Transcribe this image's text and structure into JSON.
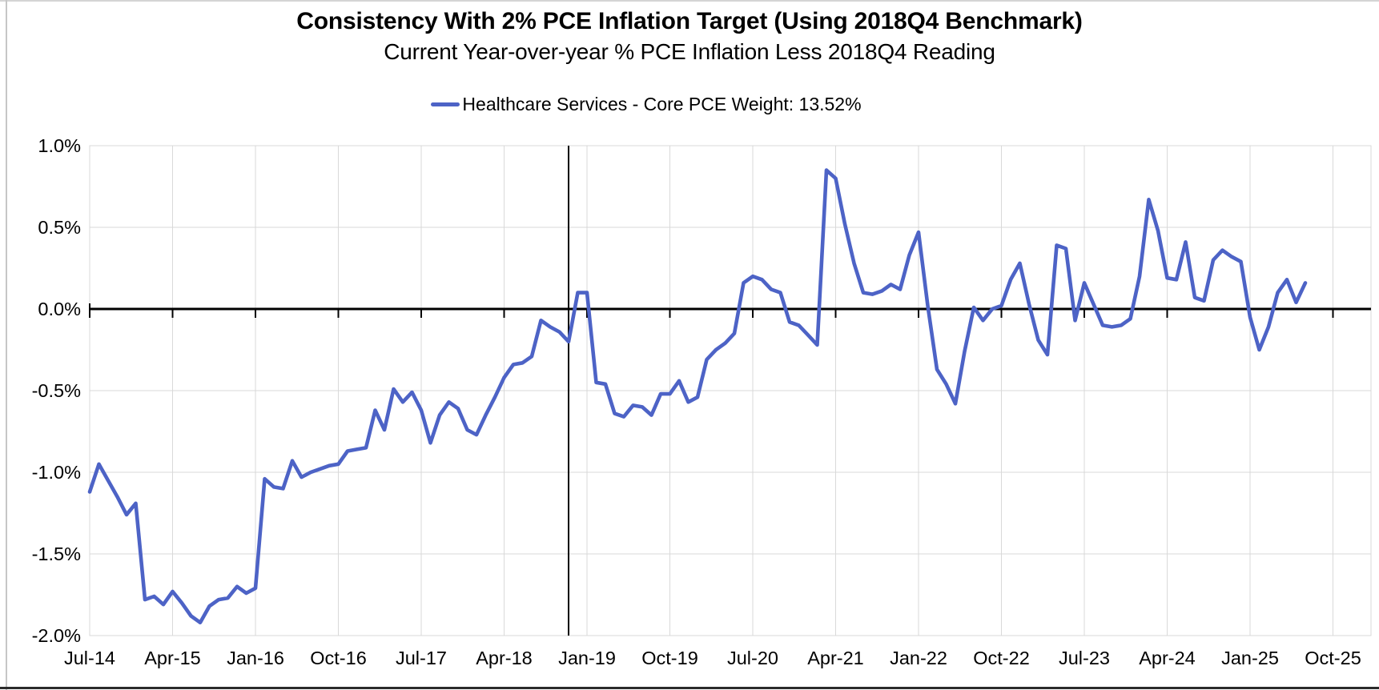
{
  "header": {
    "title": "Consistency With 2% PCE Inflation Target (Using 2018Q4 Benchmark)",
    "subtitle": "Current Year-over-year % PCE Inflation Less 2018Q4 Reading"
  },
  "legend": {
    "label": "Healthcare Services - Core PCE Weight: 13.52%"
  },
  "chart_data": {
    "type": "line",
    "title": "Consistency With 2% PCE Inflation Target (Using 2018Q4 Benchmark)",
    "subtitle": "Current Year-over-year % PCE Inflation Less 2018Q4 Reading",
    "legend_position": "top",
    "grid": true,
    "ylim": [
      -2.0,
      1.0
    ],
    "ytick_labels": [
      "1.0%",
      "0.5%",
      "0.0%",
      "-0.5%",
      "-1.0%",
      "-1.5%",
      "-2.0%"
    ],
    "ytick_values": [
      1.0,
      0.5,
      0.0,
      -0.5,
      -1.0,
      -1.5,
      -2.0
    ],
    "xtick_labels": [
      "Jul-14",
      "Apr-15",
      "Jan-16",
      "Oct-16",
      "Jul-17",
      "Apr-18",
      "Jan-19",
      "Oct-19",
      "Jul-20",
      "Apr-21",
      "Jan-22",
      "Oct-22",
      "Jul-23",
      "Apr-24",
      "Jan-25",
      "Oct-25"
    ],
    "xtick_step": 9,
    "benchmark_month": "Nov-18",
    "colors": {
      "line": "#4D63C6",
      "grid": "#D9D9D9",
      "axis": "#000000",
      "text": "#000000"
    },
    "x": [
      "Jul-14",
      "Aug-14",
      "Sep-14",
      "Oct-14",
      "Nov-14",
      "Dec-14",
      "Jan-15",
      "Feb-15",
      "Mar-15",
      "Apr-15",
      "May-15",
      "Jun-15",
      "Jul-15",
      "Aug-15",
      "Sep-15",
      "Oct-15",
      "Nov-15",
      "Dec-15",
      "Jan-16",
      "Feb-16",
      "Mar-16",
      "Apr-16",
      "May-16",
      "Jun-16",
      "Jul-16",
      "Aug-16",
      "Sep-16",
      "Oct-16",
      "Nov-16",
      "Dec-16",
      "Jan-17",
      "Feb-17",
      "Mar-17",
      "Apr-17",
      "May-17",
      "Jun-17",
      "Jul-17",
      "Aug-17",
      "Sep-17",
      "Oct-17",
      "Nov-17",
      "Dec-17",
      "Jan-18",
      "Feb-18",
      "Mar-18",
      "Apr-18",
      "May-18",
      "Jun-18",
      "Jul-18",
      "Aug-18",
      "Sep-18",
      "Oct-18",
      "Nov-18",
      "Dec-18",
      "Jan-19",
      "Feb-19",
      "Mar-19",
      "Apr-19",
      "May-19",
      "Jun-19",
      "Jul-19",
      "Aug-19",
      "Sep-19",
      "Oct-19",
      "Nov-19",
      "Dec-19",
      "Jan-20",
      "Feb-20",
      "Mar-20",
      "Apr-20",
      "May-20",
      "Jun-20",
      "Jul-20",
      "Aug-20",
      "Sep-20",
      "Oct-20",
      "Nov-20",
      "Dec-20",
      "Jan-21",
      "Feb-21",
      "Mar-21",
      "Apr-21",
      "May-21",
      "Jun-21",
      "Jul-21",
      "Aug-21",
      "Sep-21",
      "Oct-21",
      "Nov-21",
      "Dec-21",
      "Jan-22",
      "Feb-22",
      "Mar-22",
      "Apr-22",
      "May-22",
      "Jun-22",
      "Jul-22",
      "Aug-22",
      "Sep-22",
      "Oct-22",
      "Nov-22",
      "Dec-22",
      "Jan-23",
      "Feb-23",
      "Mar-23",
      "Apr-23",
      "May-23",
      "Jun-23",
      "Jul-23",
      "Aug-23",
      "Sep-23",
      "Oct-23",
      "Nov-23",
      "Dec-23",
      "Jan-24",
      "Feb-24",
      "Mar-24",
      "Apr-24",
      "May-24",
      "Jun-24",
      "Jul-24",
      "Aug-24",
      "Sep-24",
      "Oct-24",
      "Nov-24",
      "Dec-24",
      "Jan-25",
      "Feb-25",
      "Mar-25",
      "Apr-25",
      "May-25",
      "Jun-25",
      "Jul-25"
    ],
    "series": [
      {
        "name": "Healthcare Services - Core PCE Weight: 13.52%",
        "values": [
          -1.12,
          -0.95,
          -1.05,
          -1.15,
          -1.26,
          -1.19,
          -1.78,
          -1.76,
          -1.81,
          -1.73,
          -1.8,
          -1.88,
          -1.92,
          -1.82,
          -1.78,
          -1.77,
          -1.7,
          -1.74,
          -1.71,
          -1.04,
          -1.09,
          -1.1,
          -0.93,
          -1.03,
          -1.0,
          -0.98,
          -0.96,
          -0.95,
          -0.87,
          -0.86,
          -0.85,
          -0.62,
          -0.74,
          -0.49,
          -0.57,
          -0.51,
          -0.62,
          -0.82,
          -0.65,
          -0.57,
          -0.61,
          -0.74,
          -0.77,
          -0.65,
          -0.54,
          -0.42,
          -0.34,
          -0.33,
          -0.29,
          -0.07,
          -0.11,
          -0.14,
          -0.2,
          0.1,
          0.1,
          -0.45,
          -0.46,
          -0.64,
          -0.66,
          -0.59,
          -0.6,
          -0.65,
          -0.52,
          -0.52,
          -0.44,
          -0.57,
          -0.54,
          -0.31,
          -0.25,
          -0.21,
          -0.15,
          0.16,
          0.2,
          0.18,
          0.12,
          0.1,
          -0.08,
          -0.1,
          -0.16,
          -0.22,
          0.85,
          0.8,
          0.52,
          0.28,
          0.1,
          0.09,
          0.11,
          0.15,
          0.12,
          0.33,
          0.47,
          0.02,
          -0.37,
          -0.46,
          -0.58,
          -0.26,
          0.01,
          -0.07,
          0.0,
          0.02,
          0.18,
          0.28,
          0.03,
          -0.19,
          -0.28,
          0.39,
          0.37,
          -0.07,
          0.16,
          0.03,
          -0.1,
          -0.11,
          -0.1,
          -0.06,
          0.2,
          0.67,
          0.48,
          0.19,
          0.18,
          0.41,
          0.07,
          0.05,
          0.3,
          0.36,
          0.32,
          0.29,
          -0.05,
          -0.25,
          -0.11,
          0.1,
          0.18,
          0.04,
          0.16
        ]
      }
    ]
  }
}
